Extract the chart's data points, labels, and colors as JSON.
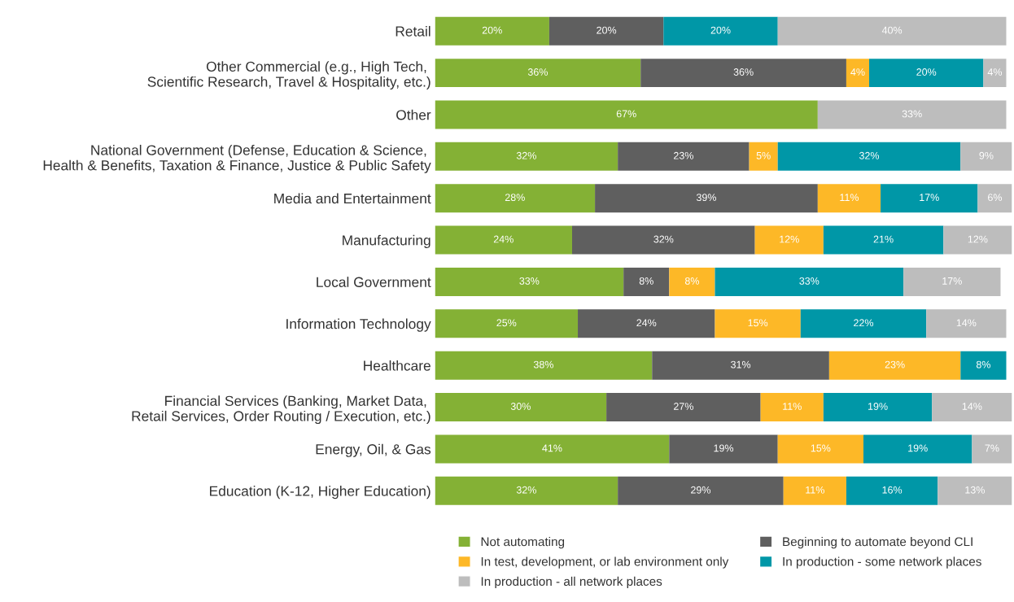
{
  "chart_data": {
    "type": "bar",
    "orientation": "horizontal",
    "stacked": true,
    "categories": [
      "Retail",
      "Other Commercial (e.g., High Tech, \nScientific Research, Travel & Hospitality, etc.)",
      "Other",
      "National Government (Defense, Education & Science, \nHealth & Benefits, Taxation & Finance, Justice & Public Safety",
      "Media and Entertainment",
      "Manufacturing",
      "Local Government",
      "Information Technology",
      "Healthcare",
      "Financial Services (Banking, Market Data, \nRetail Services, Order Routing / Execution, etc.)",
      "Energy, Oil, & Gas",
      "Education (K-12, Higher Education)"
    ],
    "series": [
      {
        "name": "Not automating",
        "color": "#84b135",
        "values": [
          20,
          36,
          67,
          32,
          28,
          24,
          33,
          25,
          38,
          30,
          41,
          32
        ],
        "value_labels": [
          "20%",
          "36%",
          "67%",
          "32%",
          "28%",
          "24%",
          "33%",
          "25%",
          "38%",
          "30%",
          "41%",
          "32%"
        ]
      },
      {
        "name": "Beginning to automate beyond CLI",
        "color": "#5f5f5f",
        "values": [
          20,
          36,
          null,
          23,
          39,
          32,
          8,
          24,
          31,
          27,
          19,
          29
        ],
        "value_labels": [
          "20%",
          "36%",
          null,
          "23%",
          "39%",
          "32%",
          "8%",
          "24%",
          "31%",
          "27%",
          "19%",
          "29%"
        ]
      },
      {
        "name": "In test, development, or lab environment only",
        "color": "#fdb827",
        "values": [
          null,
          4,
          null,
          5,
          11,
          12,
          8,
          15,
          23,
          11,
          15,
          11
        ],
        "value_labels": [
          null,
          "4%",
          null,
          "5%",
          "11%",
          "12%",
          "8%",
          "15%",
          "23%",
          "11%",
          "15%",
          "11%"
        ]
      },
      {
        "name": "In production - some network places",
        "color": "#0097a7",
        "values": [
          20,
          20,
          null,
          32,
          17,
          21,
          33,
          22,
          8,
          19,
          19,
          16
        ],
        "value_labels": [
          "20%",
          "20%",
          null,
          "32%",
          "17%",
          "21%",
          "33%",
          "22%",
          "8%",
          "19%",
          "19%",
          "16%"
        ]
      },
      {
        "name": "In production - all network places",
        "color": "#bdbdbd",
        "values": [
          40,
          4,
          33,
          9,
          6,
          12,
          17,
          14,
          null,
          14,
          7,
          13
        ],
        "value_labels": [
          "40%",
          "4%",
          "33%",
          "9%",
          "6%",
          "12%",
          "17%",
          "14%",
          null,
          "14%",
          "7%",
          "13%"
        ]
      }
    ],
    "xlim": [
      0,
      101
    ],
    "tick_labels": "y",
    "legend": "bottom",
    "grid": false
  }
}
